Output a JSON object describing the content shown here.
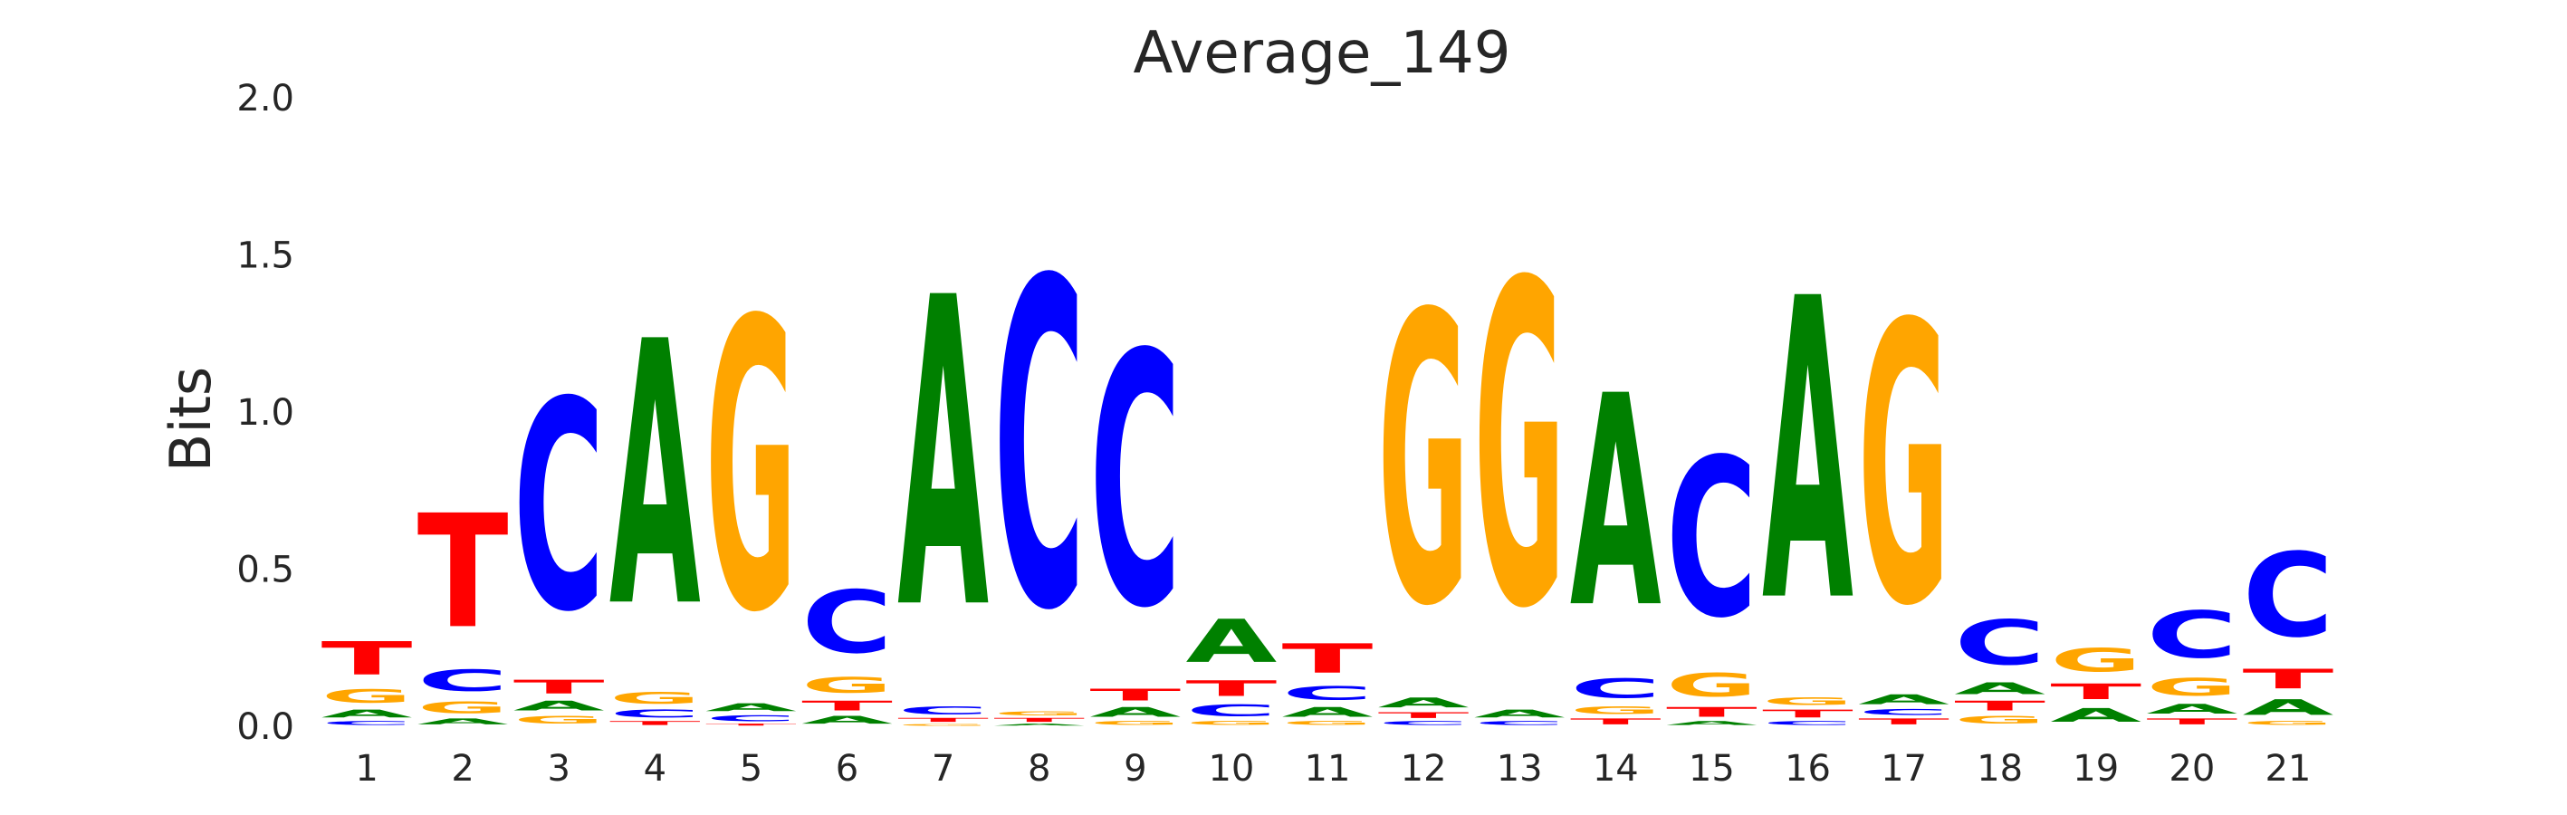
{
  "chart_data": {
    "type": "sequence-logo",
    "title": "Average_149",
    "xlabel": "",
    "ylabel": "Bits",
    "ylim": [
      0,
      2.0
    ],
    "y_ticks": [
      "0.0",
      "0.5",
      "1.0",
      "1.5",
      "2.0"
    ],
    "grid": false,
    "colors": {
      "A": "#008000",
      "C": "#0000ff",
      "G": "#ffa500",
      "T": "#ff0000"
    },
    "positions": [
      {
        "label": "1",
        "letters": [
          [
            "C",
            0.02
          ],
          [
            "A",
            0.04
          ],
          [
            "G",
            0.07
          ],
          [
            "T",
            0.17
          ]
        ]
      },
      {
        "label": "2",
        "letters": [
          [
            "A",
            0.03
          ],
          [
            "G",
            0.06
          ],
          [
            "C",
            0.11
          ],
          [
            "T",
            0.58
          ]
        ]
      },
      {
        "label": "3",
        "letters": [
          [
            "G",
            0.04
          ],
          [
            "A",
            0.05
          ],
          [
            "T",
            0.07
          ],
          [
            "C",
            1.07
          ]
        ]
      },
      {
        "label": "4",
        "letters": [
          [
            "T",
            0.02
          ],
          [
            "C",
            0.04
          ],
          [
            "G",
            0.06
          ],
          [
            "A",
            1.35
          ]
        ]
      },
      {
        "label": "5",
        "letters": [
          [
            "T",
            0.01
          ],
          [
            "C",
            0.03
          ],
          [
            "A",
            0.04
          ],
          [
            "G",
            1.48
          ]
        ]
      },
      {
        "label": "6",
        "letters": [
          [
            "A",
            0.04
          ],
          [
            "T",
            0.05
          ],
          [
            "G",
            0.08
          ],
          [
            "C",
            0.32
          ]
        ]
      },
      {
        "label": "7",
        "letters": [
          [
            "G",
            0.01
          ],
          [
            "T",
            0.02
          ],
          [
            "C",
            0.04
          ],
          [
            "A",
            1.58
          ]
        ]
      },
      {
        "label": "8",
        "letters": [
          [
            "A",
            0.01
          ],
          [
            "T",
            0.02
          ],
          [
            "G",
            0.02
          ],
          [
            "C",
            1.67
          ]
        ]
      },
      {
        "label": "9",
        "letters": [
          [
            "G",
            0.02
          ],
          [
            "A",
            0.05
          ],
          [
            "T",
            0.06
          ],
          [
            "C",
            1.29
          ]
        ]
      },
      {
        "label": "10",
        "letters": [
          [
            "G",
            0.02
          ],
          [
            "C",
            0.06
          ],
          [
            "T",
            0.08
          ],
          [
            "A",
            0.22
          ]
        ]
      },
      {
        "label": "11",
        "letters": [
          [
            "G",
            0.02
          ],
          [
            "A",
            0.05
          ],
          [
            "C",
            0.07
          ],
          [
            "T",
            0.15
          ]
        ]
      },
      {
        "label": "12",
        "letters": [
          [
            "C",
            0.02
          ],
          [
            "T",
            0.03
          ],
          [
            "A",
            0.05
          ],
          [
            "G",
            1.48
          ]
        ]
      },
      {
        "label": "13",
        "letters": [
          [
            "C",
            0.02
          ],
          [
            "A",
            0.04
          ],
          [
            "G",
            1.65
          ]
        ]
      },
      {
        "label": "14",
        "letters": [
          [
            "T",
            0.03
          ],
          [
            "G",
            0.04
          ],
          [
            "C",
            0.1
          ],
          [
            "A",
            1.08
          ]
        ]
      },
      {
        "label": "15",
        "letters": [
          [
            "A",
            0.02
          ],
          [
            "T",
            0.05
          ],
          [
            "G",
            0.12
          ],
          [
            "C",
            0.81
          ]
        ]
      },
      {
        "label": "16",
        "letters": [
          [
            "C",
            0.02
          ],
          [
            "T",
            0.04
          ],
          [
            "G",
            0.04
          ],
          [
            "A",
            1.54
          ]
        ]
      },
      {
        "label": "17",
        "letters": [
          [
            "T",
            0.03
          ],
          [
            "C",
            0.03
          ],
          [
            "A",
            0.05
          ],
          [
            "G",
            1.43
          ]
        ]
      },
      {
        "label": "18",
        "letters": [
          [
            "G",
            0.04
          ],
          [
            "T",
            0.05
          ],
          [
            "A",
            0.06
          ],
          [
            "C",
            0.23
          ]
        ]
      },
      {
        "label": "19",
        "letters": [
          [
            "A",
            0.07
          ],
          [
            "T",
            0.08
          ],
          [
            "G",
            0.12
          ]
        ]
      },
      {
        "label": "20",
        "letters": [
          [
            "T",
            0.03
          ],
          [
            "A",
            0.05
          ],
          [
            "G",
            0.09
          ],
          [
            "C",
            0.24
          ]
        ]
      },
      {
        "label": "21",
        "letters": [
          [
            "G",
            0.02
          ],
          [
            "A",
            0.08
          ],
          [
            "T",
            0.1
          ],
          [
            "C",
            0.43
          ]
        ]
      }
    ]
  }
}
